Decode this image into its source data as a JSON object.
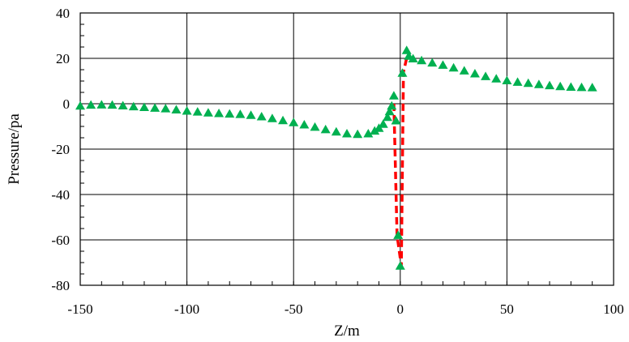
{
  "chart_data": {
    "type": "scatter",
    "title": "",
    "xlabel": "Z/m",
    "ylabel": "Pressure/pa",
    "xlim": [
      -150,
      100
    ],
    "ylim": [
      -80,
      40
    ],
    "xticks": [
      -150,
      -100,
      -50,
      0,
      50,
      100
    ],
    "yticks": [
      -80,
      -60,
      -40,
      -20,
      0,
      20,
      40
    ],
    "xtick_labels": [
      "-150",
      "-100",
      "-50",
      "0",
      "50",
      "100"
    ],
    "ytick_labels": [
      "-80",
      "-60",
      "-40",
      "-20",
      "0",
      "20",
      "40"
    ],
    "grid": true,
    "legend": "none",
    "series": [
      {
        "style": "triangle-markers",
        "color": "#00b050",
        "points": [
          [
            -150,
            -1
          ],
          [
            -145,
            -0.6
          ],
          [
            -140,
            -0.5
          ],
          [
            -135,
            -0.6
          ],
          [
            -130,
            -0.9
          ],
          [
            -125,
            -1.3
          ],
          [
            -120,
            -1.6
          ],
          [
            -115,
            -1.9
          ],
          [
            -110,
            -2.2
          ],
          [
            -105,
            -2.7
          ],
          [
            -100,
            -3.2
          ],
          [
            -95,
            -3.6
          ],
          [
            -90,
            -4.0
          ],
          [
            -85,
            -4.3
          ],
          [
            -80,
            -4.5
          ],
          [
            -75,
            -4.7
          ],
          [
            -70,
            -5.1
          ],
          [
            -65,
            -5.7
          ],
          [
            -60,
            -6.5
          ],
          [
            -55,
            -7.4
          ],
          [
            -50,
            -8.3
          ],
          [
            -45,
            -9.3
          ],
          [
            -40,
            -10.3
          ],
          [
            -35,
            -11.4
          ],
          [
            -30,
            -12.4
          ],
          [
            -25,
            -13.2
          ],
          [
            -20,
            -13.5
          ],
          [
            -15,
            -13.2
          ],
          [
            -12,
            -12.0
          ],
          [
            -10,
            -10.8
          ],
          [
            -8,
            -9.0
          ],
          [
            -6,
            -6.0
          ],
          [
            -5,
            -3.5
          ],
          [
            -4,
            -1.0
          ],
          [
            -3,
            3.5
          ],
          [
            -2,
            -7.5
          ],
          [
            -1,
            -58
          ],
          [
            0,
            -71.5
          ],
          [
            1,
            13.5
          ],
          [
            3,
            23.5
          ],
          [
            4,
            21.0
          ],
          [
            6,
            19.8
          ],
          [
            10,
            19.0
          ],
          [
            15,
            18.0
          ],
          [
            20,
            17.0
          ],
          [
            25,
            15.8
          ],
          [
            30,
            14.5
          ],
          [
            35,
            13.2
          ],
          [
            40,
            12.0
          ],
          [
            45,
            11.0
          ],
          [
            50,
            10.2
          ],
          [
            55,
            9.5
          ],
          [
            60,
            9.0
          ],
          [
            65,
            8.5
          ],
          [
            70,
            8.0
          ],
          [
            75,
            7.6
          ],
          [
            80,
            7.3
          ],
          [
            85,
            7.2
          ],
          [
            90,
            7.1
          ]
        ]
      },
      {
        "style": "dashed-line",
        "color": "#ff0000",
        "points": [
          [
            -3,
            0
          ],
          [
            -1.5,
            -58
          ],
          [
            0.5,
            -71.5
          ],
          [
            1.5,
            14
          ],
          [
            3,
            20
          ]
        ]
      }
    ]
  }
}
